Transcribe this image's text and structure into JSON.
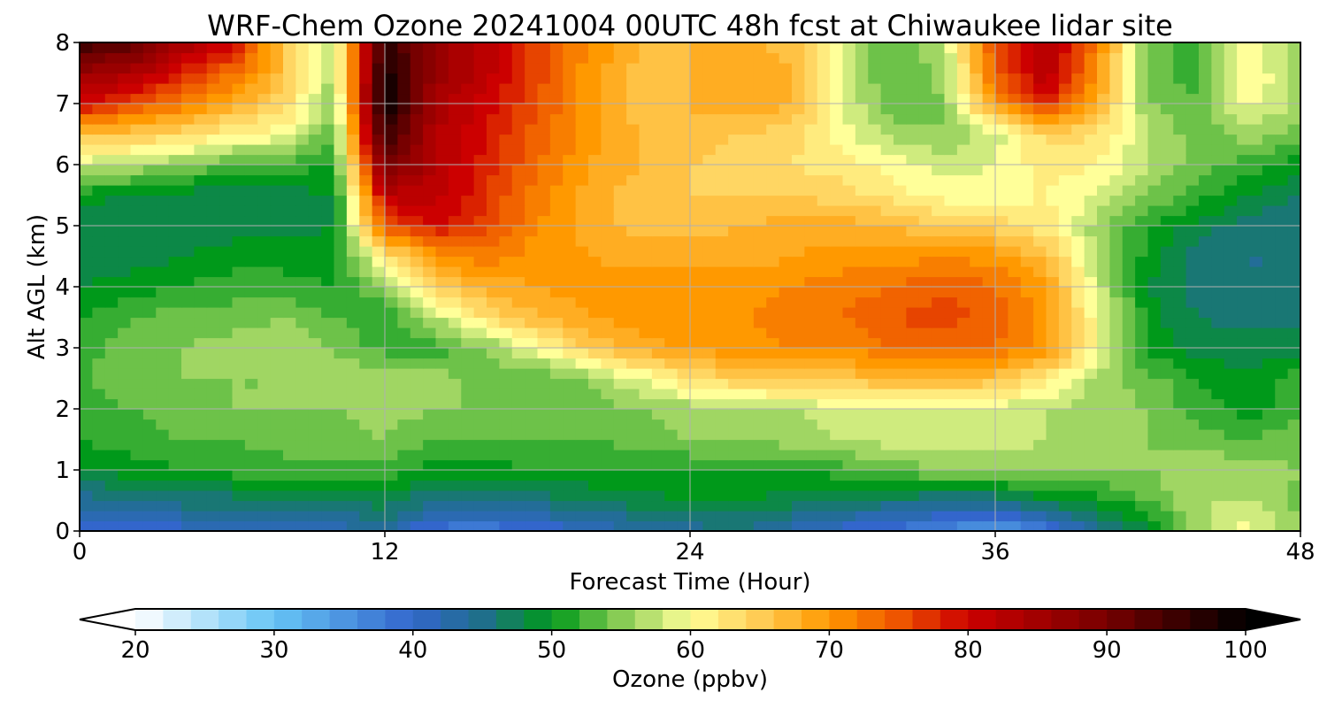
{
  "chart_data": {
    "type": "heatmap",
    "title": "WRF-Chem Ozone  20241004 00UTC 48h fcst at Chiwaukee lidar site",
    "xlabel": "Forecast Time (Hour)",
    "ylabel": "Alt AGL (km)",
    "xlim": [
      0,
      48
    ],
    "ylim": [
      0,
      8
    ],
    "xticks": [
      0,
      12,
      24,
      36,
      48
    ],
    "yticks": [
      0,
      1,
      2,
      3,
      4,
      5,
      6,
      7,
      8
    ],
    "grid": true,
    "x": [
      0,
      2,
      4,
      6,
      8,
      10,
      12,
      14,
      16,
      18,
      20,
      22,
      24,
      26,
      28,
      30,
      32,
      34,
      36,
      38,
      40,
      42,
      44,
      46,
      48
    ],
    "y": [
      0,
      0.5,
      1,
      1.5,
      2,
      2.5,
      3,
      3.5,
      4,
      4.5,
      5,
      5.5,
      6,
      6.5,
      7,
      7.5,
      8
    ],
    "z": [
      [
        40,
        40,
        40,
        40,
        41,
        42,
        43,
        38,
        37,
        39,
        41,
        43,
        44,
        45,
        42,
        40,
        38,
        36,
        34,
        37,
        44,
        48,
        56,
        60,
        55
      ],
      [
        44,
        45,
        46,
        46,
        47,
        47,
        48,
        45,
        45,
        46,
        47,
        48,
        49,
        49,
        48,
        47,
        46,
        45,
        45,
        48,
        50,
        53,
        57,
        57,
        54
      ],
      [
        49,
        50,
        51,
        52,
        52,
        52,
        52,
        50,
        50,
        51,
        51,
        51,
        51,
        51,
        51,
        52,
        54,
        55,
        56,
        56,
        55,
        55,
        57,
        56,
        55
      ],
      [
        51,
        52,
        53,
        53,
        54,
        54,
        55,
        53,
        53,
        53,
        53,
        54,
        55,
        55,
        56,
        57,
        58,
        58,
        58,
        57,
        56,
        55,
        54,
        53,
        54
      ],
      [
        52,
        53,
        54,
        55,
        55,
        55,
        56,
        55,
        55,
        54,
        54,
        55,
        56,
        56,
        57,
        58,
        58,
        59,
        58,
        57,
        56,
        55,
        52,
        50,
        53
      ],
      [
        53,
        54,
        55,
        55,
        55,
        56,
        57,
        56,
        54,
        53,
        55,
        59,
        63,
        65,
        66,
        66,
        67,
        67,
        66,
        62,
        56,
        54,
        51,
        49,
        52
      ],
      [
        52,
        54,
        55,
        56,
        57,
        55,
        52,
        52,
        55,
        60,
        65,
        68,
        70,
        70,
        71,
        71,
        73,
        74,
        73,
        70,
        60,
        50,
        48,
        48,
        48
      ],
      [
        51,
        53,
        54,
        54,
        55,
        53,
        51,
        57,
        63,
        67,
        69,
        70,
        70,
        71,
        72,
        73,
        75,
        76,
        74,
        70,
        60,
        50,
        47,
        46,
        46
      ],
      [
        49,
        50,
        51,
        52,
        52,
        51,
        55,
        65,
        68,
        69,
        70,
        70,
        70,
        70,
        71,
        72,
        73,
        75,
        73,
        69,
        58,
        49,
        46,
        45,
        45
      ],
      [
        48,
        48,
        49,
        50,
        50,
        50,
        62,
        70,
        72,
        70,
        69,
        68,
        68,
        68,
        69,
        70,
        70,
        71,
        70,
        66,
        57,
        50,
        46,
        45,
        45
      ],
      [
        47,
        47,
        47,
        48,
        48,
        49,
        75,
        79,
        76,
        71,
        68,
        66,
        66,
        67,
        68,
        68,
        67,
        65,
        64,
        62,
        56,
        51,
        48,
        46,
        45
      ],
      [
        50,
        49,
        48,
        47,
        48,
        49,
        82,
        82,
        77,
        72,
        68,
        66,
        65,
        65,
        65,
        64,
        62,
        60,
        60,
        61,
        59,
        55,
        52,
        49,
        47
      ],
      [
        58,
        57,
        55,
        53,
        52,
        51,
        90,
        83,
        78,
        73,
        69,
        67,
        65,
        64,
        63,
        62,
        60,
        58,
        59,
        62,
        61,
        57,
        54,
        52,
        50
      ],
      [
        66,
        65,
        64,
        61,
        60,
        53,
        96,
        83,
        79,
        74,
        70,
        67,
        66,
        65,
        64,
        60,
        56,
        55,
        58,
        64,
        63,
        57,
        54,
        56,
        54
      ],
      [
        80,
        76,
        72,
        68,
        64,
        55,
        100,
        84,
        80,
        75,
        70,
        66,
        67,
        69,
        67,
        59,
        53,
        55,
        70,
        78,
        68,
        55,
        53,
        60,
        56
      ],
      [
        86,
        84,
        78,
        73,
        66,
        56,
        99,
        86,
        82,
        76,
        70,
        66,
        67,
        69,
        67,
        58,
        53,
        56,
        74,
        83,
        70,
        54,
        52,
        61,
        56
      ],
      [
        95,
        92,
        85,
        80,
        66,
        57,
        96,
        86,
        82,
        76,
        71,
        67,
        67,
        68,
        66,
        58,
        53,
        57,
        76,
        84,
        72,
        54,
        52,
        60,
        55
      ]
    ],
    "colorbar": {
      "label": "Ozone  (ppbv)",
      "min": 20,
      "max": 100,
      "ticks": [
        20,
        30,
        40,
        50,
        60,
        70,
        80,
        90,
        100
      ],
      "extend": "both",
      "colors": [
        {
          "v": 20,
          "c": "#ffffff"
        },
        {
          "v": 30,
          "c": "#66c4f5"
        },
        {
          "v": 40,
          "c": "#3366cc"
        },
        {
          "v": 45,
          "c": "#1f6f8b"
        },
        {
          "v": 50,
          "c": "#00991a"
        },
        {
          "v": 55,
          "c": "#88cc55"
        },
        {
          "v": 60,
          "c": "#ffff99"
        },
        {
          "v": 65,
          "c": "#ffcc55"
        },
        {
          "v": 70,
          "c": "#ff9900"
        },
        {
          "v": 75,
          "c": "#ee5500"
        },
        {
          "v": 80,
          "c": "#cc0000"
        },
        {
          "v": 90,
          "c": "#770000"
        },
        {
          "v": 100,
          "c": "#000000"
        }
      ]
    }
  }
}
